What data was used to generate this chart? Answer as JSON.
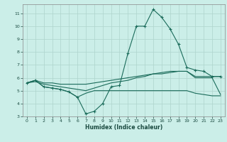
{
  "xlabel": "Humidex (Indice chaleur)",
  "background_color": "#cbeee8",
  "grid_color": "#aed4cc",
  "line_color": "#1a6b5a",
  "xlim": [
    -0.5,
    23.5
  ],
  "ylim": [
    3,
    11.7
  ],
  "yticks": [
    3,
    4,
    5,
    6,
    7,
    8,
    9,
    10,
    11
  ],
  "xticks": [
    0,
    1,
    2,
    3,
    4,
    5,
    6,
    7,
    8,
    9,
    10,
    11,
    12,
    13,
    14,
    15,
    16,
    17,
    18,
    19,
    20,
    21,
    22,
    23
  ],
  "line1_x": [
    0,
    1,
    2,
    3,
    4,
    5,
    6,
    7,
    8,
    9,
    10,
    11,
    12,
    13,
    14,
    15,
    16,
    17,
    18,
    19,
    20,
    21,
    22,
    23
  ],
  "line1_y": [
    5.6,
    5.8,
    5.3,
    5.2,
    5.1,
    4.9,
    4.5,
    3.2,
    3.4,
    4.0,
    5.3,
    5.4,
    7.9,
    10.0,
    10.0,
    11.3,
    10.7,
    9.8,
    8.6,
    6.8,
    6.6,
    6.5,
    6.1,
    6.1
  ],
  "line2_x": [
    0,
    1,
    2,
    3,
    4,
    5,
    6,
    7,
    8,
    9,
    10,
    11,
    12,
    13,
    14,
    15,
    16,
    17,
    18,
    19,
    20,
    21,
    22,
    23
  ],
  "line2_y": [
    5.6,
    5.8,
    5.3,
    5.2,
    5.1,
    4.9,
    4.5,
    4.8,
    5.0,
    5.0,
    5.0,
    5.0,
    5.0,
    5.0,
    5.0,
    5.0,
    5.0,
    5.0,
    5.0,
    5.0,
    4.8,
    4.7,
    4.6,
    4.6
  ],
  "line3_x": [
    0,
    1,
    2,
    3,
    4,
    5,
    6,
    7,
    8,
    9,
    10,
    11,
    12,
    13,
    14,
    15,
    16,
    17,
    18,
    19,
    20,
    21,
    22,
    23
  ],
  "line3_y": [
    5.6,
    5.8,
    5.6,
    5.6,
    5.5,
    5.5,
    5.5,
    5.5,
    5.6,
    5.7,
    5.8,
    5.9,
    6.0,
    6.1,
    6.2,
    6.3,
    6.3,
    6.4,
    6.5,
    6.5,
    6.1,
    6.1,
    6.1,
    6.1
  ],
  "line4_x": [
    0,
    1,
    2,
    3,
    4,
    5,
    6,
    7,
    8,
    9,
    10,
    11,
    12,
    13,
    14,
    15,
    16,
    17,
    18,
    19,
    20,
    21,
    22,
    23
  ],
  "line4_y": [
    5.6,
    5.7,
    5.5,
    5.4,
    5.3,
    5.2,
    5.1,
    5.0,
    5.2,
    5.4,
    5.6,
    5.7,
    5.8,
    6.0,
    6.1,
    6.3,
    6.4,
    6.5,
    6.5,
    6.5,
    6.0,
    6.0,
    6.0,
    4.7
  ]
}
